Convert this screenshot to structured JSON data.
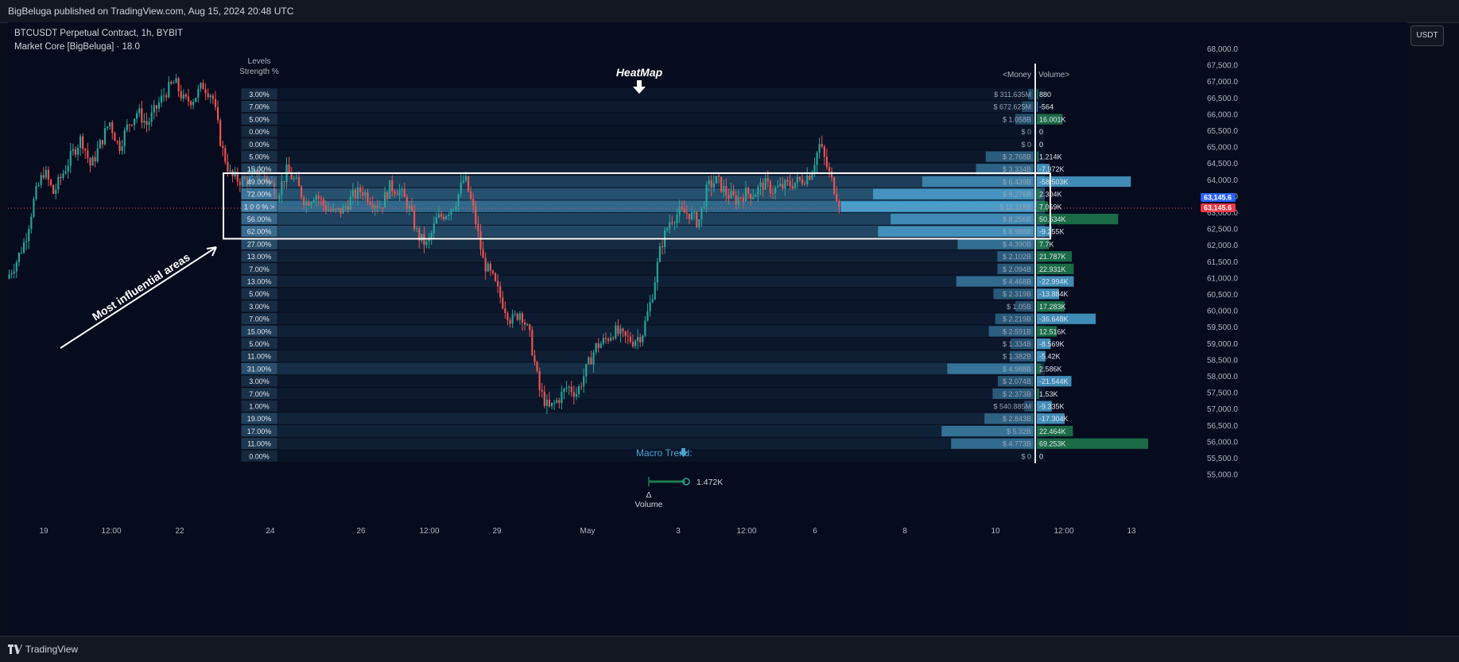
{
  "header": {
    "published": "BigBeluga published on TradingView.com, Aug 15, 2024 20:48 UTC"
  },
  "chart_info": {
    "symbol": "BTCUSDT Perpetual Contract, 1h, BYBIT",
    "indicator": "Market Core [BigBeluga] · 18.0"
  },
  "unit_button": "USDT",
  "footer": {
    "logo_text": "TradingView"
  },
  "colors": {
    "bull": "#26a69a",
    "bear": "#ef5350",
    "heat": "#4ba3d1",
    "vol_pos": "#1e7d4e",
    "price_tag": "#2962ff",
    "price_tag_red": "#f23645"
  },
  "annotations": {
    "levels_title": "Levels",
    "levels_subtitle": "Strength %",
    "heatmap_label": "HeatMap",
    "money_header": "<Money",
    "volume_header": "Volume>",
    "influential": "Most influential areas",
    "macro_trend": "Macro Trend:",
    "delta_symbol": "Δ",
    "delta_label": "Volume",
    "delta_value": "1.472K"
  },
  "current_price": {
    "value": "63,145.6",
    "value2": "63,145.6"
  },
  "chart_data": {
    "type": "candlestick",
    "y_axis_labels": [
      "68,000.0",
      "67,500.0",
      "67,000.0",
      "66,500.0",
      "66,000.0",
      "65,500.0",
      "65,000.0",
      "64,500.0",
      "64,000.0",
      "63,500.0",
      "63,000.0",
      "62,500.0",
      "62,000.0",
      "61,500.0",
      "61,000.0",
      "60,500.0",
      "60,000.0",
      "59,500.0",
      "59,000.0",
      "58,500.0",
      "58,000.0",
      "57,500.0",
      "57,000.0",
      "56,500.0",
      "56,000.0",
      "55,500.0",
      "55,000.0"
    ],
    "y_axis_values": [
      68000,
      67500,
      67000,
      66500,
      66000,
      65500,
      65000,
      64500,
      64000,
      63500,
      63000,
      62500,
      62000,
      61500,
      61000,
      60500,
      60000,
      59500,
      59000,
      58500,
      58000,
      57500,
      57000,
      56500,
      56000,
      55500,
      55000
    ],
    "x_axis_labels": [
      "19",
      "12:00",
      "22",
      "24",
      "26",
      "12:00",
      "29",
      "May",
      "3",
      "12:00",
      "6",
      "8",
      "10",
      "12:00",
      "13"
    ],
    "levels": [
      {
        "strength": "3.00%",
        "s": 3,
        "money": "$ 311.635M",
        "m": 0.31,
        "volume": "880",
        "v": 0.88
      },
      {
        "strength": "7.00%",
        "s": 7,
        "money": "$ 672.625M",
        "m": 0.67,
        "volume": "-564",
        "v": -0.56
      },
      {
        "strength": "5.00%",
        "s": 5,
        "money": "$ 1.058B",
        "m": 1.06,
        "volume": "16.001K",
        "v": 16.0
      },
      {
        "strength": "0.00%",
        "s": 0,
        "money": "$ 0",
        "m": 0,
        "volume": "0",
        "v": 0
      },
      {
        "strength": "0.00%",
        "s": 0,
        "money": "$ 0",
        "m": 0,
        "volume": "0",
        "v": 0
      },
      {
        "strength": "5.00%",
        "s": 5,
        "money": "$ 2.768B",
        "m": 2.77,
        "volume": "1.214K",
        "v": 1.2
      },
      {
        "strength": "15.00%",
        "s": 15,
        "money": "$ 3.334B",
        "m": 3.33,
        "volume": "-7.972K",
        "v": -7.97
      },
      {
        "strength": "49.00%",
        "s": 49,
        "money": "$ 6.439B",
        "m": 6.44,
        "volume": "-58.503K",
        "v": -58.5
      },
      {
        "strength": "72.00%",
        "s": 72,
        "money": "$ 9.276B",
        "m": 9.28,
        "volume": "2.304K",
        "v": 2.3
      },
      {
        "strength": "1 0 0 % >",
        "s": 100,
        "money": "$ 11.118B",
        "m": 11.12,
        "volume": "7.059K",
        "v": 7.06
      },
      {
        "strength": "56.00%",
        "s": 56,
        "money": "$ 8.256B",
        "m": 8.26,
        "volume": "50.634K",
        "v": 50.63
      },
      {
        "strength": "62.00%",
        "s": 62,
        "money": "$ 8.988B",
        "m": 8.99,
        "volume": "-9.255K",
        "v": -9.26
      },
      {
        "strength": "27.00%",
        "s": 27,
        "money": "$ 4.390B",
        "m": 4.39,
        "volume": "7.7K",
        "v": 7.7
      },
      {
        "strength": "13.00%",
        "s": 13,
        "money": "$ 2.102B",
        "m": 2.1,
        "volume": "21.787K",
        "v": 21.79
      },
      {
        "strength": "7.00%",
        "s": 7,
        "money": "$ 2.094B",
        "m": 2.09,
        "volume": "22.931K",
        "v": 22.93
      },
      {
        "strength": "13.00%",
        "s": 13,
        "money": "$ 4.468B",
        "m": 4.47,
        "volume": "-22.994K",
        "v": -22.99
      },
      {
        "strength": "5.00%",
        "s": 5,
        "money": "$ 2.319B",
        "m": 2.32,
        "volume": "-13.884K",
        "v": -13.88
      },
      {
        "strength": "3.00%",
        "s": 3,
        "money": "$ 1.05B",
        "m": 1.05,
        "volume": "17.283K",
        "v": 17.28
      },
      {
        "strength": "7.00%",
        "s": 7,
        "money": "$ 2.219B",
        "m": 2.22,
        "volume": "-36.648K",
        "v": -36.65
      },
      {
        "strength": "15.00%",
        "s": 15,
        "money": "$ 2.591B",
        "m": 2.59,
        "volume": "12.516K",
        "v": 12.52
      },
      {
        "strength": "5.00%",
        "s": 5,
        "money": "$ 1.334B",
        "m": 1.33,
        "volume": "-8.569K",
        "v": -8.57
      },
      {
        "strength": "11.00%",
        "s": 11,
        "money": "$ 1.382B",
        "m": 1.38,
        "volume": "-5.42K",
        "v": -5.42
      },
      {
        "strength": "31.00%",
        "s": 31,
        "money": "$ 4.988B",
        "m": 4.99,
        "volume": "2.586K",
        "v": 2.59
      },
      {
        "strength": "3.00%",
        "s": 3,
        "money": "$ 2.074B",
        "m": 2.07,
        "volume": "-21.544K",
        "v": -21.54
      },
      {
        "strength": "7.00%",
        "s": 7,
        "money": "$ 2.373B",
        "m": 2.37,
        "volume": "1.53K",
        "v": 1.53
      },
      {
        "strength": "1.00%",
        "s": 1,
        "money": "$ 540.885M",
        "m": 0.54,
        "volume": "-9.335K",
        "v": -9.34
      },
      {
        "strength": "19.00%",
        "s": 19,
        "money": "$ 2.843B",
        "m": 2.84,
        "volume": "-17.304K",
        "v": -17.3
      },
      {
        "strength": "17.00%",
        "s": 17,
        "money": "$ 5.32B",
        "m": 5.32,
        "volume": "22.464K",
        "v": 22.46
      },
      {
        "strength": "11.00%",
        "s": 11,
        "money": "$ 4.773B",
        "m": 4.77,
        "volume": "69.253K",
        "v": 69.25
      },
      {
        "strength": "0.00%",
        "s": 0,
        "money": "$ 0",
        "m": 0,
        "volume": "0",
        "v": 0
      }
    ],
    "price_path": [
      [
        0,
        61000
      ],
      [
        3,
        61500
      ],
      [
        6,
        62200
      ],
      [
        9,
        63500
      ],
      [
        12,
        64300
      ],
      [
        15,
        63600
      ],
      [
        18,
        64200
      ],
      [
        21,
        64800
      ],
      [
        24,
        65300
      ],
      [
        27,
        64400
      ],
      [
        30,
        65100
      ],
      [
        33,
        65800
      ],
      [
        36,
        65000
      ],
      [
        39,
        65700
      ],
      [
        42,
        66100
      ],
      [
        45,
        65700
      ],
      [
        48,
        66200
      ],
      [
        51,
        66700
      ],
      [
        54,
        67000
      ],
      [
        57,
        66400
      ],
      [
        60,
        66500
      ],
      [
        63,
        66900
      ],
      [
        66,
        66600
      ],
      [
        69,
        65000
      ],
      [
        72,
        64100
      ],
      [
        75,
        64000
      ],
      [
        78,
        64000
      ],
      [
        81,
        64300
      ],
      [
        84,
        64000
      ],
      [
        87,
        63600
      ],
      [
        90,
        64300
      ],
      [
        93,
        63900
      ],
      [
        96,
        63300
      ],
      [
        99,
        63600
      ],
      [
        102,
        63200
      ],
      [
        105,
        63000
      ],
      [
        108,
        63100
      ],
      [
        111,
        63500
      ],
      [
        114,
        63700
      ],
      [
        117,
        63400
      ],
      [
        120,
        63200
      ],
      [
        123,
        63800
      ],
      [
        126,
        63700
      ],
      [
        129,
        63200
      ],
      [
        132,
        62300
      ],
      [
        135,
        62000
      ],
      [
        138,
        62800
      ],
      [
        141,
        63000
      ],
      [
        144,
        63300
      ],
      [
        147,
        64100
      ],
      [
        150,
        63000
      ],
      [
        153,
        61500
      ],
      [
        156,
        61000
      ],
      [
        159,
        60300
      ],
      [
        162,
        59700
      ],
      [
        165,
        60000
      ],
      [
        168,
        59200
      ],
      [
        171,
        57600
      ],
      [
        174,
        57000
      ],
      [
        177,
        57300
      ],
      [
        180,
        57700
      ],
      [
        183,
        57500
      ],
      [
        186,
        58200
      ],
      [
        189,
        58900
      ],
      [
        192,
        59100
      ],
      [
        195,
        59400
      ],
      [
        198,
        59200
      ],
      [
        201,
        59100
      ],
      [
        204,
        59300
      ],
      [
        207,
        60400
      ],
      [
        210,
        62000
      ],
      [
        213,
        62800
      ],
      [
        216,
        63000
      ],
      [
        219,
        63000
      ],
      [
        222,
        62700
      ],
      [
        225,
        63800
      ],
      [
        228,
        64000
      ],
      [
        231,
        63600
      ],
      [
        234,
        63400
      ],
      [
        237,
        63600
      ],
      [
        240,
        63600
      ],
      [
        243,
        63900
      ],
      [
        246,
        63700
      ],
      [
        249,
        63800
      ],
      [
        252,
        63900
      ],
      [
        255,
        64000
      ],
      [
        258,
        64200
      ],
      [
        261,
        65100
      ],
      [
        264,
        64200
      ],
      [
        267,
        63400
      ],
      [
        268,
        63150
      ]
    ]
  }
}
